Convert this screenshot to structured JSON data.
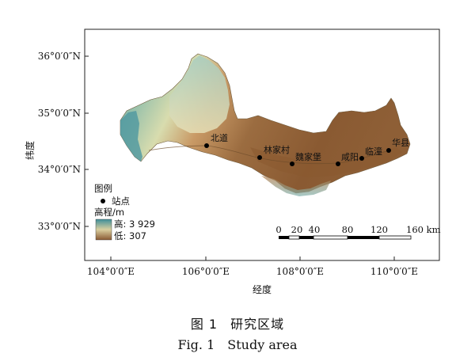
{
  "map": {
    "latitude_ticks": [
      "36°0′0″N",
      "35°0′0″N",
      "34°0′0″N",
      "33°0′0″N"
    ],
    "longitude_ticks": [
      "104°0′0″E",
      "106°0′0″E",
      "108°0′0″E",
      "110°0′0″E"
    ],
    "y_axis_title": "纬度",
    "x_axis_title": "经度",
    "stations": [
      {
        "name": "北道"
      },
      {
        "name": "林家村"
      },
      {
        "name": "魏家堡"
      },
      {
        "name": "咸阳"
      },
      {
        "name": "临潼"
      },
      {
        "name": "华县"
      }
    ],
    "legend": {
      "title": "图例",
      "station_label": "站点",
      "elevation_title": "高程/m",
      "high_label": "高: 3 929",
      "low_label": "低: 307",
      "color_high": "#3f8f9a",
      "color_mid": "#d9cf9f",
      "color_low": "#8a5a34"
    },
    "scale_bar": {
      "ticks": [
        "0",
        "20",
        "40",
        "80",
        "120",
        "160 km"
      ]
    }
  },
  "caption": {
    "cn_number": "图 1",
    "cn_title": "研究区域",
    "en_number": "Fig. 1",
    "en_title": "Study area"
  }
}
